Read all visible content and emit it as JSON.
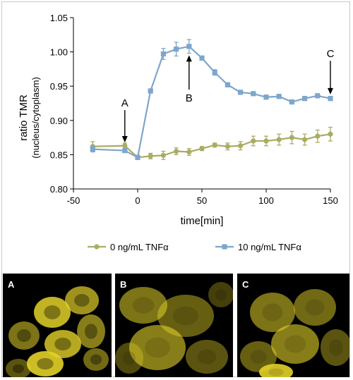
{
  "chart_data": {
    "type": "line",
    "ylabel": "ratio TMR",
    "ylabel_sub": "(nucleus/cytoplasm)",
    "xlabel": "time[min]",
    "xlim": [
      -50,
      150
    ],
    "ylim": [
      0.8,
      1.05
    ],
    "xticks": [
      "-50",
      "0",
      "50",
      "100",
      "150"
    ],
    "yticks": [
      "0.80",
      "0.85",
      "0.90",
      "0.95",
      "1.00",
      "1.05"
    ],
    "legend_position": "bottom",
    "series": [
      {
        "name": "0 ng/mL TNFα",
        "color": "#a9ac62",
        "marker": "circle",
        "points": [
          {
            "x": -35,
            "y": 0.862,
            "err": 0.007
          },
          {
            "x": -10,
            "y": 0.863,
            "err": 0.004
          },
          {
            "x": 0,
            "y": 0.846,
            "err": 0.003
          },
          {
            "x": 10,
            "y": 0.848,
            "err": 0.004
          },
          {
            "x": 20,
            "y": 0.849,
            "err": 0.006
          },
          {
            "x": 30,
            "y": 0.855,
            "err": 0.005
          },
          {
            "x": 40,
            "y": 0.854,
            "err": 0.005
          },
          {
            "x": 50,
            "y": 0.859,
            "err": 0.003
          },
          {
            "x": 60,
            "y": 0.864,
            "err": 0.003
          },
          {
            "x": 70,
            "y": 0.862,
            "err": 0.005
          },
          {
            "x": 80,
            "y": 0.863,
            "err": 0.006
          },
          {
            "x": 90,
            "y": 0.87,
            "err": 0.007
          },
          {
            "x": 100,
            "y": 0.87,
            "err": 0.007
          },
          {
            "x": 110,
            "y": 0.872,
            "err": 0.008
          },
          {
            "x": 120,
            "y": 0.875,
            "err": 0.009
          },
          {
            "x": 130,
            "y": 0.872,
            "err": 0.008
          },
          {
            "x": 140,
            "y": 0.877,
            "err": 0.009
          },
          {
            "x": 150,
            "y": 0.88,
            "err": 0.01
          }
        ]
      },
      {
        "name": "10 ng/mL TNFα",
        "color": "#7ea6cc",
        "marker": "square",
        "points": [
          {
            "x": -35,
            "y": 0.858,
            "err": 0.004
          },
          {
            "x": -10,
            "y": 0.856,
            "err": 0.003
          },
          {
            "x": 0,
            "y": 0.846,
            "err": 0.003
          },
          {
            "x": 10,
            "y": 0.943,
            "err": 0.003
          },
          {
            "x": 20,
            "y": 0.997,
            "err": 0.008
          },
          {
            "x": 30,
            "y": 1.004,
            "err": 0.01
          },
          {
            "x": 40,
            "y": 1.008,
            "err": 0.01
          },
          {
            "x": 50,
            "y": 0.991,
            "err": 0.003
          },
          {
            "x": 60,
            "y": 0.97,
            "err": 0.004
          },
          {
            "x": 70,
            "y": 0.952,
            "err": 0.003
          },
          {
            "x": 80,
            "y": 0.941,
            "err": 0.003
          },
          {
            "x": 90,
            "y": 0.939,
            "err": 0.003
          },
          {
            "x": 100,
            "y": 0.934,
            "err": 0.003
          },
          {
            "x": 110,
            "y": 0.935,
            "err": 0.003
          },
          {
            "x": 120,
            "y": 0.927,
            "err": 0.003
          },
          {
            "x": 130,
            "y": 0.932,
            "err": 0.003
          },
          {
            "x": 140,
            "y": 0.936,
            "err": 0.003
          },
          {
            "x": 150,
            "y": 0.932,
            "err": 0.003
          }
        ]
      }
    ],
    "annotations": [
      {
        "label": "A",
        "x": -10,
        "direction": "down",
        "target_y": 0.87,
        "tail_y": 0.915
      },
      {
        "label": "B",
        "x": 40,
        "direction": "up",
        "target_y": 0.993,
        "tail_y": 0.945
      },
      {
        "label": "C",
        "x": 150,
        "direction": "down",
        "target_y": 0.94,
        "tail_y": 0.987
      }
    ]
  },
  "panels": [
    {
      "label": "A"
    },
    {
      "label": "B"
    },
    {
      "label": "C"
    }
  ],
  "colors": {
    "axis": "#000000",
    "panel_background": "#000000",
    "fluorescence": "#e3d229"
  }
}
